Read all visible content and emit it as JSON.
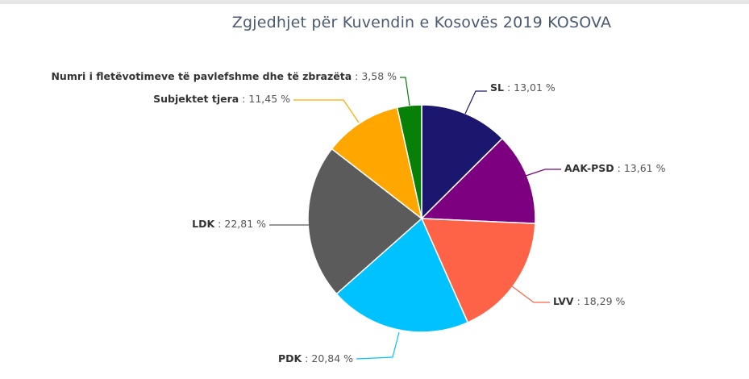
{
  "chart_data": {
    "type": "pie",
    "title": "Zgjedhjet për Kuvendin e Kosovës 2019 KOSOVA",
    "slices": [
      {
        "name": "SL",
        "value": 13.01,
        "value_label": "13,01 %",
        "color": "#1c176e"
      },
      {
        "name": "AAK-PSD",
        "value": 13.61,
        "value_label": "13,61 %",
        "color": "#7d0080"
      },
      {
        "name": "LVV",
        "value": 18.29,
        "value_label": "18,29 %",
        "color": "#ff6347"
      },
      {
        "name": "PDK",
        "value": 20.84,
        "value_label": "20,84 %",
        "color": "#00c2ff"
      },
      {
        "name": "LDK",
        "value": 22.81,
        "value_label": "22,81 %",
        "color": "#5b5b5b"
      },
      {
        "name": "Subjektet tjera",
        "value": 11.45,
        "value_label": "11,45 %",
        "color": "#ffa600"
      },
      {
        "name": "Numri i fletëvotimeve të pavlefshme dhe të zbrazëta",
        "value": 3.58,
        "value_label": "3,58 %",
        "color": "#068006"
      }
    ],
    "legend": "none",
    "data_labels": "outside with leader lines"
  }
}
